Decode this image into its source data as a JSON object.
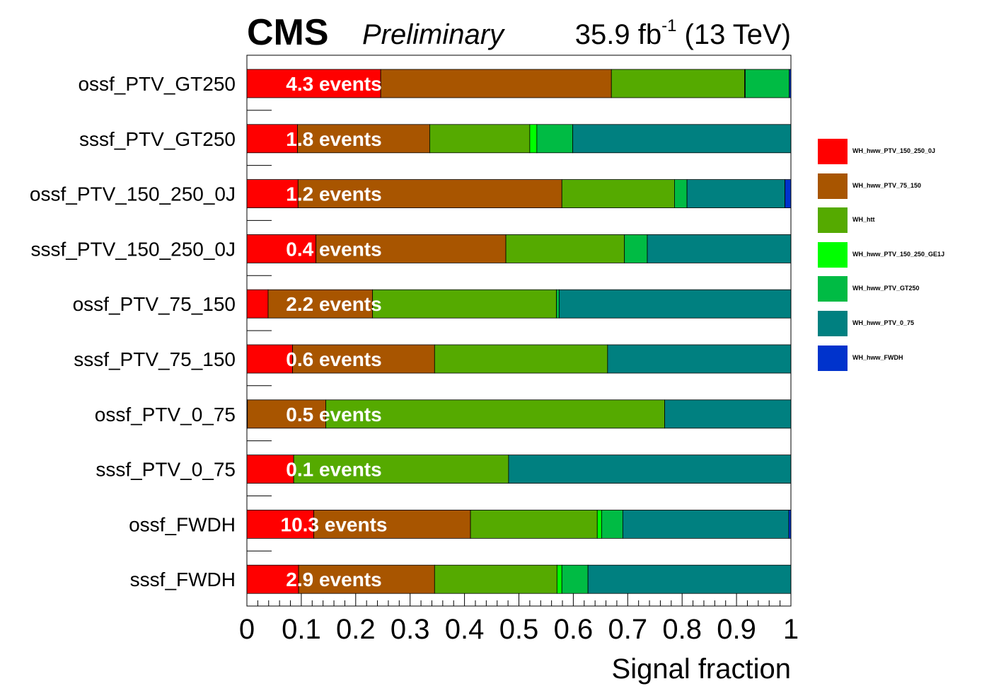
{
  "header": {
    "cms_label": "CMS",
    "preliminary_label": "Preliminary",
    "lumi_main": "35.9 fb",
    "lumi_exp": "-1",
    "lumi_energy": " (13 TeV)"
  },
  "chart_data": {
    "type": "bar",
    "orientation": "horizontal",
    "stacked": true,
    "xlabel": "Signal fraction",
    "xlim": [
      0,
      1
    ],
    "x_ticks": [
      "0",
      "0.1",
      "0.2",
      "0.3",
      "0.4",
      "0.5",
      "0.6",
      "0.7",
      "0.8",
      "0.9",
      "1"
    ],
    "categories": [
      "ossf_PTV_GT250",
      "sssf_PTV_GT250",
      "ossf_PTV_150_250_0J",
      "sssf_PTV_150_250_0J",
      "ossf_PTV_75_150",
      "sssf_PTV_75_150",
      "ossf_PTV_0_75",
      "sssf_PTV_0_75",
      "ossf_FWDH",
      "sssf_FWDH"
    ],
    "event_labels": [
      "4.3 events",
      "1.8 events",
      "1.2 events",
      "0.4 events",
      "2.2 events",
      "0.6 events",
      "0.5 events",
      "0.1 events",
      "10.3 events",
      "2.9 events"
    ],
    "legend_position": "right",
    "series": [
      {
        "name": "WH_hww_PTV_150_250_0J",
        "color": "#ff0000",
        "values": [
          0.246,
          0.093,
          0.094,
          0.127,
          0.039,
          0.084,
          0.001,
          0.086,
          0.123,
          0.095
        ]
      },
      {
        "name": "WH_hww_PTV_75_150",
        "color": "#a85500",
        "values": [
          0.424,
          0.243,
          0.485,
          0.349,
          0.192,
          0.261,
          0.144,
          0.0,
          0.288,
          0.25
        ]
      },
      {
        "name": "WH_htt",
        "color": "#55aa00",
        "values": [
          0.245,
          0.184,
          0.207,
          0.218,
          0.338,
          0.318,
          0.623,
          0.395,
          0.233,
          0.225
        ]
      },
      {
        "name": "WH_hww_PTV_150_250_GE1J",
        "color": "#00ff00",
        "values": [
          0.001,
          0.013,
          0.0,
          0.0,
          0.0,
          0.0,
          0.0,
          0.0,
          0.008,
          0.009
        ]
      },
      {
        "name": "WH_hww_PTV_GT250",
        "color": "#00bb44",
        "values": [
          0.081,
          0.066,
          0.023,
          0.042,
          0.005,
          0.0,
          0.0,
          0.0,
          0.039,
          0.048
        ]
      },
      {
        "name": "WH_hww_PTV_0_75",
        "color": "#008080",
        "values": [
          0.0,
          0.401,
          0.18,
          0.264,
          0.426,
          0.337,
          0.232,
          0.519,
          0.305,
          0.373
        ]
      },
      {
        "name": "WH_hww_FWDH",
        "color": "#0033cc",
        "values": [
          0.003,
          0.0,
          0.011,
          0.0,
          0.0,
          0.0,
          0.0,
          0.0,
          0.004,
          0.0
        ]
      }
    ]
  }
}
